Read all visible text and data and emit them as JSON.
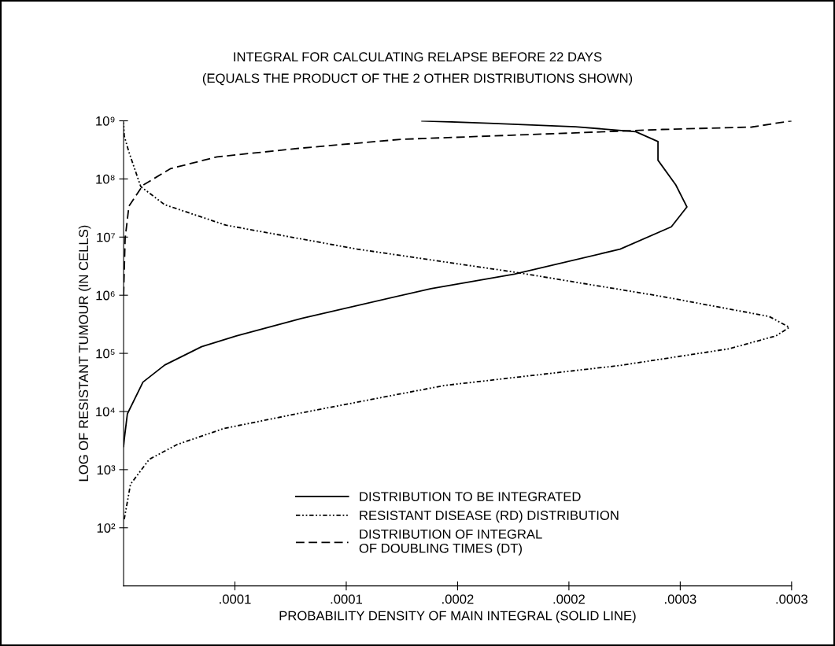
{
  "chart_data": {
    "type": "line",
    "title": "INTEGRAL FOR CALCULATING RELAPSE BEFORE 22 DAYS",
    "subtitle": "(EQUALS THE PRODUCT OF THE 2 OTHER DISTRIBUTIONS SHOWN)",
    "xlabel": "PROBABILITY DENSITY OF MAIN INTEGRAL (SOLID LINE)",
    "ylabel": "LOG OF RESISTANT TUMOUR (IN CELLS)",
    "log": "y",
    "grid": false,
    "legend": "bottom",
    "xlim": [
      0,
      0.0003
    ],
    "xticks": [
      {
        "value": 5e-05,
        "label": ".0001"
      },
      {
        "value": 0.0001,
        "label": ".0001"
      },
      {
        "value": 0.00015,
        "label": ".0002"
      },
      {
        "value": 0.0002,
        "label": ".0002"
      },
      {
        "value": 0.00025,
        "label": ".0003"
      },
      {
        "value": 0.0003,
        "label": ".0003"
      }
    ],
    "ylim": [
      10,
      1000000000
    ],
    "yticks": [
      {
        "value": 100,
        "label": "10²"
      },
      {
        "value": 1000,
        "label": "10³"
      },
      {
        "value": 10000,
        "label": "10⁴"
      },
      {
        "value": 100000,
        "label": "10⁵"
      },
      {
        "value": 1000000,
        "label": "10⁶"
      },
      {
        "value": 10000000,
        "label": "10⁷"
      },
      {
        "value": 100000000,
        "label": "10⁸"
      },
      {
        "value": 1000000000,
        "label": "10⁹"
      }
    ],
    "series": [
      {
        "name": "DISTRIBUTION TO BE INTEGRATED",
        "color": "#000000",
        "line_style": "solid",
        "x": [
          0,
          3e-07,
          1.7e-06,
          8.7e-06,
          1.85e-05,
          3.5e-05,
          5.07e-05,
          8e-05,
          0.000138,
          0.0001755,
          0.000223,
          0.000246,
          0.000253,
          0.000248,
          0.00024,
          0.00024,
          0.00023,
          0.000203,
          0.000164,
          0.000134
        ],
        "values": [
          2500,
          3300,
          9100,
          32000,
          63000,
          130000,
          200000,
          400000,
          1300000,
          2300000,
          6200000,
          15000000,
          33000000,
          79000000,
          210000000,
          440000000,
          650000000,
          790000000,
          910000000,
          1000000000
        ]
      },
      {
        "name": "RESISTANT DISEASE (RD) DISTRIBUTION",
        "color": "#000000",
        "line_style": "dotted",
        "x": [
          3e-07,
          3.1e-06,
          1.15e-05,
          2.4e-05,
          4.5e-05,
          8e-05,
          0.000144,
          0.000223,
          0.000272,
          0.000293,
          0.000299,
          0.00029,
          0.000242,
          0.0001755,
          0.000105,
          4.6e-05,
          1.85e-05,
          7.7e-06,
          2.4e-06,
          3e-07,
          0
        ],
        "values": [
          140,
          560,
          1500,
          2700,
          5100,
          9500,
          28000,
          62000,
          120000,
          200000,
          280000,
          430000,
          950000,
          2500000,
          6200000,
          16000000,
          36000000,
          74000000,
          290000000,
          550000000,
          930000000
        ]
      },
      {
        "name": "DISTRIBUTION OF INTEGRAL\nOF DOUBLING TIMES (DT)",
        "color": "#000000",
        "line_style": "dashed",
        "x": [
          0,
          7e-07,
          2.4e-06,
          8.7e-06,
          2.1e-05,
          4.2e-05,
          8e-05,
          0.0001245,
          0.000203,
          0.000242,
          0.000282,
          0.0003
        ],
        "values": [
          1000000,
          9500000,
          34000000,
          78000000,
          150000000,
          240000000,
          340000000,
          480000000,
          620000000,
          710000000,
          780000000,
          1000000000
        ]
      }
    ]
  }
}
